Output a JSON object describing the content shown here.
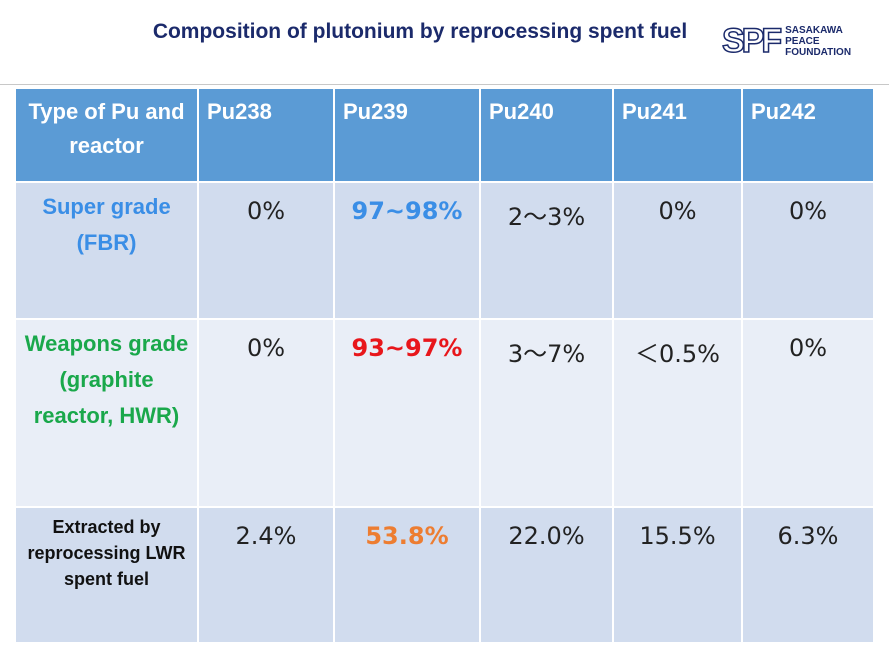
{
  "header": {
    "title": "Composition of plutonium by reprocessing spent fuel",
    "logo": {
      "mark": "SPF",
      "lines": [
        "SASAKAWA",
        "PEACE",
        "FOUNDATION"
      ]
    }
  },
  "table": {
    "columns": [
      "Type of Pu and reactor",
      "Pu238",
      "Pu239",
      "Pu240",
      "Pu241",
      "Pu242"
    ],
    "rows": [
      [
        "Super grade (FBR)",
        "0%",
        "97~98%",
        "2～3%",
        "0%",
        "0%"
      ],
      [
        "Weapons grade (graphite reactor, HWR)",
        "0%",
        "93~97%",
        "3～7%",
        "＜0.5%",
        "0%"
      ],
      [
        "Extracted by reprocessing LWR spent fuel",
        "2.4%",
        "53.8%",
        "22.0%",
        "15.5%",
        "6.3%"
      ]
    ]
  }
}
